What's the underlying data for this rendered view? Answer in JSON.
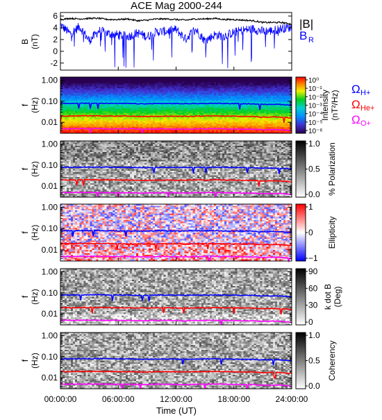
{
  "title": "ACE Mag 2000-244",
  "time_axis": {
    "label": "Time (UT)",
    "ticks": [
      "00:00:00",
      "06:00:00",
      "12:00:00",
      "18:00:00",
      "24:00:00"
    ],
    "range_hours": [
      0,
      24
    ]
  },
  "colors": {
    "B": "#000000",
    "BR": "#0000ff",
    "H": "#0000ff",
    "He": "#ff0000",
    "O": "#ff00ff"
  },
  "top_panel": {
    "ylabel_line1": "B",
    "ylabel_line2": "(nT)",
    "yticks": [
      "6",
      "4",
      "2",
      "0",
      "-2"
    ],
    "ylim": [
      -3.2,
      6.6
    ],
    "legend_B": "|B|",
    "legend_BR_main": "B",
    "legend_BR_sub": "R"
  },
  "freq_axis": {
    "ylabel_line1": "f",
    "ylabel_line2": "(Hz)",
    "ticks": [
      "1.00",
      "0.10",
      "0.01"
    ],
    "log_range": [
      0.003,
      1.4
    ]
  },
  "panels": [
    {
      "key": "intensity",
      "colorbar": "rainbow",
      "cb_label_line1": "Intensity",
      "cb_label_line2": "(nT²/Hz)",
      "cb_ticks": [
        "10⁰",
        "10⁻¹",
        "10⁻²",
        "10⁻³",
        "10⁻⁴",
        "10⁻⁵",
        "10⁻⁶"
      ]
    },
    {
      "key": "polarization",
      "colorbar": "gray",
      "cb_label_line1": "% Polarization",
      "cb_label_line2": "",
      "cb_ticks": [
        "1.0",
        "0.5",
        "0.0"
      ]
    },
    {
      "key": "ellipticity",
      "colorbar": "bwr",
      "cb_label_line1": "Ellipticity",
      "cb_label_line2": "",
      "cb_ticks": [
        "1",
        "0",
        "−1"
      ]
    },
    {
      "key": "kdotb",
      "colorbar": "gray",
      "cb_label_line1": "k dot B",
      "cb_label_line2": "(Deg)",
      "cb_ticks": [
        "90",
        "60",
        "30",
        "0"
      ]
    },
    {
      "key": "coherency",
      "colorbar": "gray",
      "cb_label_line1": "Coherency",
      "cb_label_line2": "",
      "cb_ticks": [
        "1.0",
        "0.5",
        "0.0"
      ]
    }
  ],
  "gyro_labels": {
    "omega": "Ω",
    "H_sub": "H+",
    "He_sub": "He+",
    "O_sub": "O+"
  },
  "chart_data": {
    "type": "line",
    "title": "ACE Mag 2000-244",
    "xlabel": "Time (UT)",
    "x_hours": [
      0,
      1,
      2,
      3,
      4,
      5,
      6,
      7,
      8,
      9,
      10,
      11,
      12,
      13,
      14,
      15,
      16,
      17,
      18,
      19,
      20,
      21,
      22,
      23,
      24
    ],
    "series": [
      {
        "name": "|B|",
        "values": [
          5.4,
          5.6,
          5.5,
          5.6,
          5.6,
          5.4,
          5.4,
          5.5,
          5.2,
          5.3,
          5.5,
          5.5,
          5.4,
          5.3,
          5.5,
          5.5,
          5.6,
          5.4,
          5.4,
          5.3,
          5.2,
          4.9,
          4.9,
          4.9,
          4.6
        ]
      },
      {
        "name": "B_R",
        "values": [
          4.5,
          3.0,
          4.2,
          1.8,
          3.5,
          3.0,
          2.8,
          2.5,
          3.1,
          2.5,
          3.3,
          3.4,
          3.7,
          2.1,
          3.8,
          1.8,
          2.8,
          2.6,
          3.2,
          3.6,
          3.8,
          3.4,
          3.5,
          3.9,
          4.1
        ]
      },
      {
        "name": "Ω_H+ (Hz)",
        "values": [
          0.08,
          0.078,
          0.08,
          0.08,
          0.081,
          0.079,
          0.078,
          0.078,
          0.076,
          0.075,
          0.078,
          0.078,
          0.077,
          0.076,
          0.078,
          0.078,
          0.08,
          0.078,
          0.077,
          0.076,
          0.075,
          0.07,
          0.072,
          0.07,
          0.065
        ]
      },
      {
        "name": "Ω_He+ (Hz)",
        "values": [
          0.02,
          0.0195,
          0.02,
          0.02,
          0.02,
          0.0198,
          0.0195,
          0.0195,
          0.019,
          0.0188,
          0.0195,
          0.0195,
          0.0193,
          0.019,
          0.0195,
          0.0195,
          0.02,
          0.0195,
          0.0193,
          0.019,
          0.0188,
          0.0175,
          0.018,
          0.0175,
          0.016
        ]
      },
      {
        "name": "Ω_O+ (Hz)",
        "values": [
          0.005,
          0.0049,
          0.005,
          0.005,
          0.005,
          0.0049,
          0.0049,
          0.0049,
          0.0048,
          0.0047,
          0.0049,
          0.0049,
          0.0048,
          0.0047,
          0.0049,
          0.0049,
          0.005,
          0.0049,
          0.0048,
          0.0047,
          0.0047,
          0.0044,
          0.0045,
          0.0044,
          0.004
        ]
      }
    ],
    "yticks_B": [
      6,
      4,
      2,
      0,
      -2
    ],
    "ylim_B": [
      -3.2,
      6.6
    ],
    "ylim_f_log": [
      0.003,
      1.4
    ]
  }
}
